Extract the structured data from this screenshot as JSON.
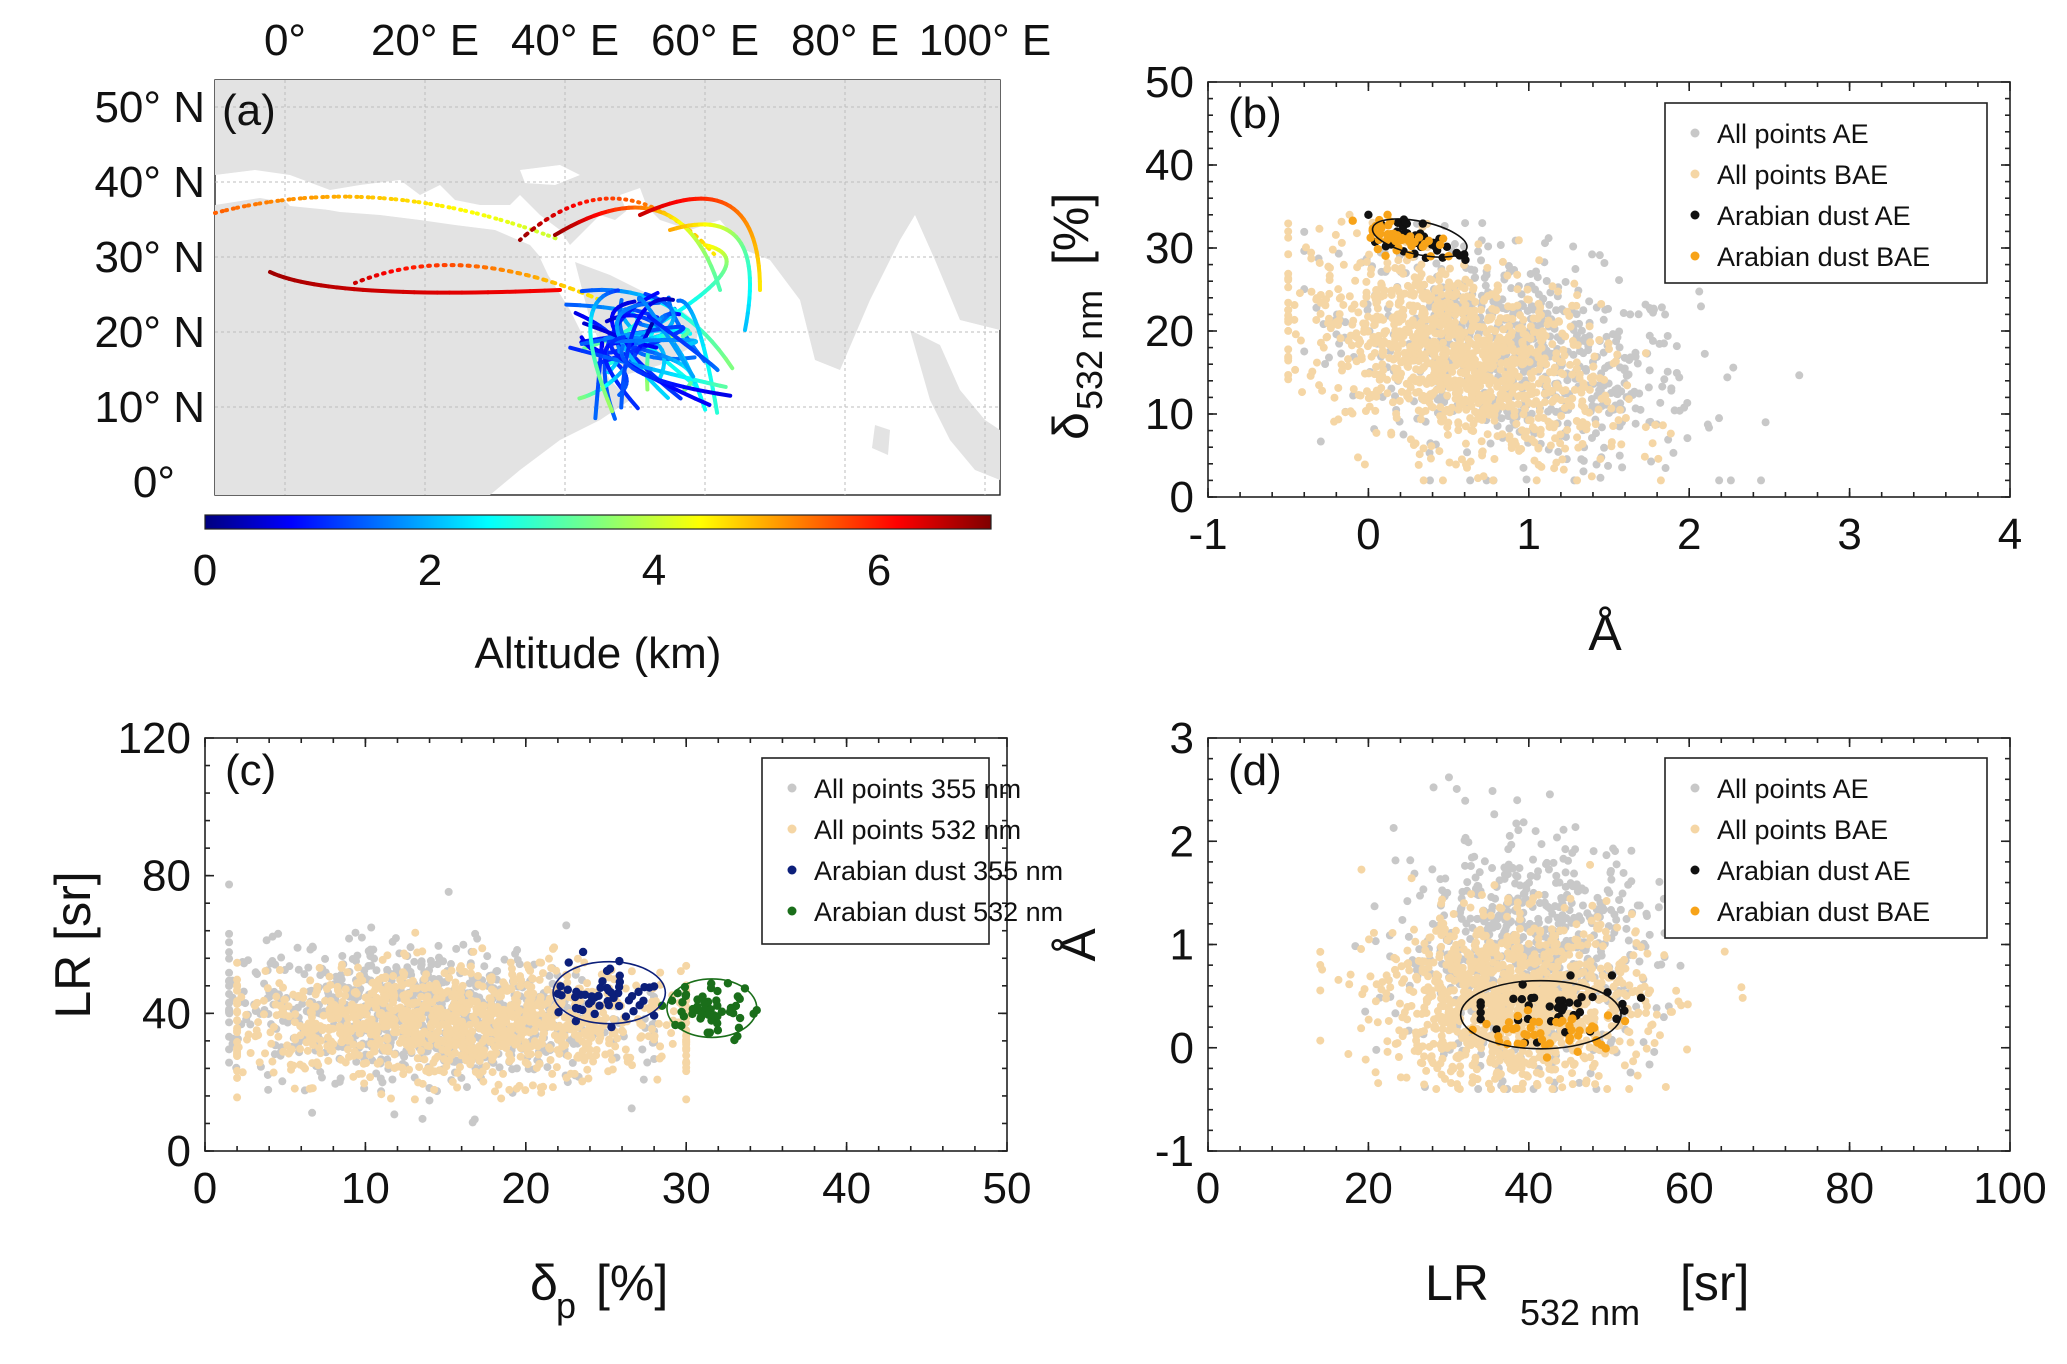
{
  "colors": {
    "ae_gray": "#c8c8c8",
    "bae_beige": "#f5d6a5",
    "ar_ae_black": "#111111",
    "ar_bae_orange": "#f7a318",
    "ar_355_navy": "#0c1f7a",
    "ar_532_green": "#1a6e1a",
    "land": "#e3e3e3"
  },
  "panel_a": {
    "label": "(a)",
    "lon_ticks": [
      "0°",
      "20° E",
      "40° E",
      "60° E",
      "80° E",
      "100° E"
    ],
    "lat_ticks": [
      "50° N",
      "40° N",
      "30° N",
      "20° N",
      "10° N",
      "0°"
    ],
    "colorbar_ticks": [
      "0",
      "2",
      "4",
      "6"
    ],
    "colorbar_label": "Altitude (km)",
    "colorbar_range": [
      0,
      7
    ]
  },
  "chart_data": [
    {
      "id": "b",
      "type": "scatter",
      "panel_label": "(b)",
      "xlabel": "Å",
      "ylabel": "δ",
      "ylabel_sub": "532 nm",
      "ylabel_unit": "[%]",
      "xlim": [
        -1,
        4
      ],
      "ylim": [
        0,
        50
      ],
      "xticks": [
        "-1",
        "0",
        "1",
        "2",
        "3",
        "4"
      ],
      "yticks": [
        "0",
        "10",
        "20",
        "30",
        "40",
        "50"
      ],
      "legend_position": "top-right",
      "series": [
        {
          "name": "All points AE",
          "color": "#c8c8c8",
          "n": 650,
          "cx": 0.95,
          "cy": 17,
          "sx": 0.55,
          "sy": 6.5,
          "rho": -0.35,
          "xlim": [
            -0.4,
            2.7
          ],
          "ylim": [
            2,
            33
          ]
        },
        {
          "name": "All points BAE",
          "color": "#f5d6a5",
          "n": 1150,
          "cx": 0.55,
          "cy": 17,
          "sx": 0.45,
          "sy": 6.0,
          "rho": -0.4,
          "xlim": [
            -0.5,
            2.9
          ],
          "ylim": [
            2,
            34
          ]
        },
        {
          "name": "Arabian dust AE",
          "color": "#111111",
          "n": 40,
          "cx": 0.32,
          "cy": 31,
          "sx": 0.16,
          "sy": 1.5,
          "rho": -0.6,
          "xlim": [
            0,
            0.7
          ],
          "ylim": [
            28,
            34
          ]
        },
        {
          "name": "Arabian dust BAE",
          "color": "#f7a318",
          "n": 45,
          "cx": 0.18,
          "cy": 31.5,
          "sx": 0.12,
          "sy": 1.2,
          "rho": -0.5,
          "xlim": [
            -0.1,
            0.5
          ],
          "ylim": [
            29,
            34
          ]
        }
      ],
      "ellipses": [
        {
          "cx": 0.32,
          "cy": 31.2,
          "rx": 0.3,
          "ry": 2.0,
          "color": "#111111"
        }
      ]
    },
    {
      "id": "c",
      "type": "scatter",
      "panel_label": "(c)",
      "xlabel": "δ",
      "xlabel_sub": "p",
      "xlabel_unit": "[%]",
      "ylabel": "LR [sr]",
      "xlim": [
        0,
        50
      ],
      "ylim": [
        0,
        120
      ],
      "xticks": [
        "0",
        "10",
        "20",
        "30",
        "40",
        "50"
      ],
      "yticks": [
        "0",
        "40",
        "80",
        "120"
      ],
      "legend_position": "top-right",
      "series": [
        {
          "name": "All points 355 nm",
          "color": "#c8c8c8",
          "n": 800,
          "cx": 13,
          "cy": 40,
          "sx": 6,
          "sy": 10,
          "rho": -0.1,
          "xlim": [
            1.5,
            28
          ],
          "ylim": [
            8,
            110
          ]
        },
        {
          "name": "All points 532 nm",
          "color": "#f5d6a5",
          "n": 1150,
          "cx": 16,
          "cy": 37,
          "sx": 7,
          "sy": 8,
          "rho": 0.0,
          "xlim": [
            2,
            30
          ],
          "ylim": [
            15,
            90
          ]
        },
        {
          "name": "Arabian dust 355 nm",
          "color": "#0c1f7a",
          "n": 50,
          "cx": 25,
          "cy": 46,
          "sx": 1.7,
          "sy": 5,
          "rho": 0.0,
          "xlim": [
            22,
            28
          ],
          "ylim": [
            36,
            58
          ]
        },
        {
          "name": "Arabian dust 532 nm",
          "color": "#1a6e1a",
          "n": 55,
          "cx": 31.5,
          "cy": 41,
          "sx": 1.4,
          "sy": 4,
          "rho": 0.0,
          "xlim": [
            28.5,
            34.5
          ],
          "ylim": [
            32,
            55
          ]
        }
      ],
      "ellipses": [
        {
          "cx": 25.2,
          "cy": 46,
          "rx": 3.5,
          "ry": 9,
          "color": "#0c1f7a"
        },
        {
          "cx": 31.6,
          "cy": 41.5,
          "rx": 2.8,
          "ry": 8.5,
          "color": "#1a6e1a"
        }
      ]
    },
    {
      "id": "d",
      "type": "scatter",
      "panel_label": "(d)",
      "xlabel": "LR",
      "xlabel_sub": "532 nm",
      "xlabel_unit": "[sr]",
      "ylabel": "Å",
      "xlim": [
        0,
        100
      ],
      "ylim": [
        -1,
        3
      ],
      "xticks": [
        "0",
        "20",
        "40",
        "60",
        "80",
        "100"
      ],
      "yticks": [
        "-1",
        "0",
        "1",
        "2",
        "3"
      ],
      "legend_position": "top-right",
      "series": [
        {
          "name": "All points AE",
          "color": "#c8c8c8",
          "n": 650,
          "cx": 40,
          "cy": 0.95,
          "sx": 8,
          "sy": 0.55,
          "rho": 0.0,
          "xlim": [
            15,
            96
          ],
          "ylim": [
            -0.4,
            2.7
          ]
        },
        {
          "name": "All points BAE",
          "color": "#f5d6a5",
          "n": 1150,
          "cx": 38,
          "cy": 0.45,
          "sx": 8,
          "sy": 0.4,
          "rho": 0.0,
          "xlim": [
            14,
            96
          ],
          "ylim": [
            -0.4,
            1.8
          ]
        },
        {
          "name": "Arabian dust AE",
          "color": "#111111",
          "n": 40,
          "cx": 43,
          "cy": 0.35,
          "sx": 5,
          "sy": 0.15,
          "rho": 0.0,
          "xlim": [
            34,
            54
          ],
          "ylim": [
            0.05,
            0.7
          ]
        },
        {
          "name": "Arabian dust BAE",
          "color": "#f7a318",
          "n": 45,
          "cx": 42,
          "cy": 0.15,
          "sx": 5,
          "sy": 0.12,
          "rho": 0.0,
          "xlim": [
            33,
            52
          ],
          "ylim": [
            -0.2,
            0.45
          ]
        }
      ],
      "ellipses": [
        {
          "cx": 41.5,
          "cy": 0.32,
          "rx": 10,
          "ry": 0.33,
          "color": "#111111"
        }
      ]
    }
  ]
}
